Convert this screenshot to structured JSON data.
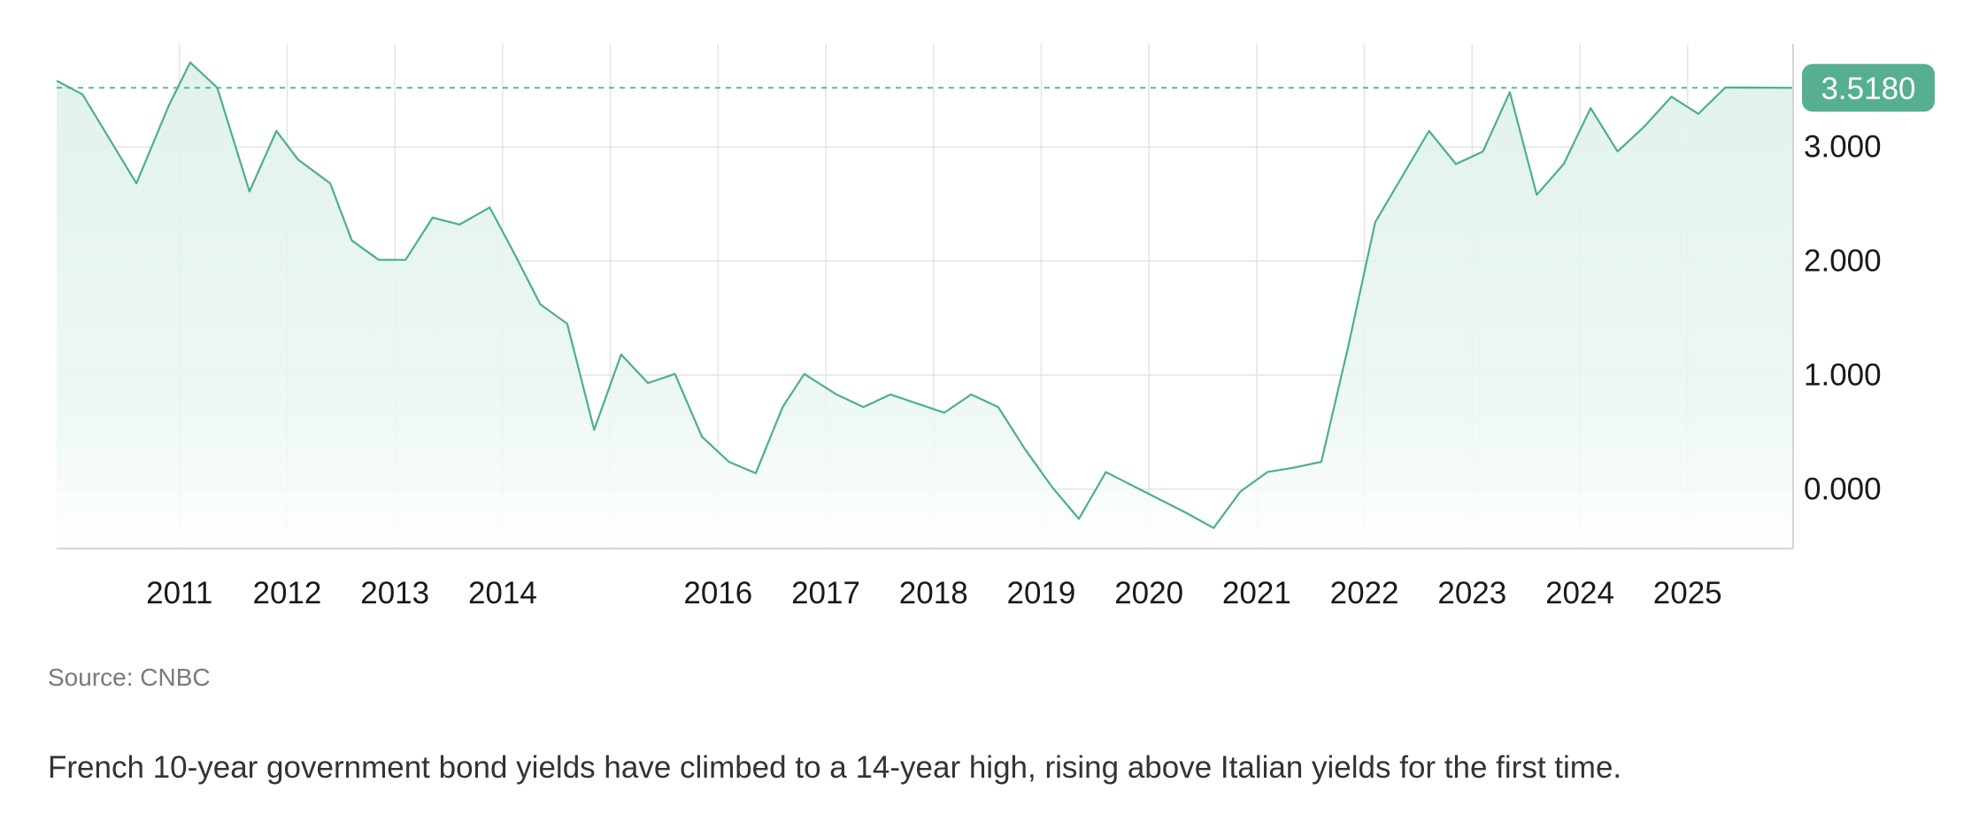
{
  "chart_data": {
    "type": "area",
    "title": "",
    "xlabel": "",
    "ylabel": "",
    "x_tick_labels": [
      "2011",
      "2012",
      "2013",
      "2014",
      "2016",
      "2017",
      "2018",
      "2019",
      "2020",
      "2021",
      "2022",
      "2023",
      "2024",
      "2025"
    ],
    "y_tick_labels": [
      "3.000",
      "2.000",
      "1.000",
      "0.000"
    ],
    "y_ticks": [
      3,
      2,
      1,
      0
    ],
    "ylim": [
      -0.52,
      3.9
    ],
    "xlim": [
      2009.86,
      2025.98
    ],
    "grid": true,
    "legend": "none",
    "current_value": 3.518,
    "current_value_label": "3.5180",
    "series": [
      {
        "values": [
          [
            2009.86,
            3.58
          ],
          [
            2010.1,
            3.46
          ],
          [
            2010.6,
            2.68
          ],
          [
            2010.9,
            3.36
          ],
          [
            2011.1,
            3.74
          ],
          [
            2011.35,
            3.52
          ],
          [
            2011.65,
            2.61
          ],
          [
            2011.9,
            3.14
          ],
          [
            2012.1,
            2.89
          ],
          [
            2012.4,
            2.68
          ],
          [
            2012.6,
            2.18
          ],
          [
            2012.85,
            2.01
          ],
          [
            2013.1,
            2.01
          ],
          [
            2013.35,
            2.38
          ],
          [
            2013.6,
            2.32
          ],
          [
            2013.88,
            2.47
          ],
          [
            2014.1,
            2.08
          ],
          [
            2014.35,
            1.62
          ],
          [
            2014.6,
            1.45
          ],
          [
            2014.85,
            0.52
          ],
          [
            2015.1,
            1.18
          ],
          [
            2015.35,
            0.93
          ],
          [
            2015.6,
            1.01
          ],
          [
            2015.85,
            0.46
          ],
          [
            2016.1,
            0.24
          ],
          [
            2016.35,
            0.14
          ],
          [
            2016.6,
            0.72
          ],
          [
            2016.8,
            1.01
          ],
          [
            2017.1,
            0.83
          ],
          [
            2017.35,
            0.72
          ],
          [
            2017.6,
            0.83
          ],
          [
            2017.85,
            0.75
          ],
          [
            2018.1,
            0.67
          ],
          [
            2018.35,
            0.83
          ],
          [
            2018.6,
            0.72
          ],
          [
            2018.85,
            0.35
          ],
          [
            2019.1,
            0.02
          ],
          [
            2019.35,
            -0.26
          ],
          [
            2019.6,
            0.15
          ],
          [
            2019.85,
            0.03
          ],
          [
            2020.1,
            -0.09
          ],
          [
            2020.35,
            -0.21
          ],
          [
            2020.6,
            -0.34
          ],
          [
            2020.85,
            -0.02
          ],
          [
            2021.1,
            0.15
          ],
          [
            2021.35,
            0.19
          ],
          [
            2021.6,
            0.24
          ],
          [
            2021.85,
            1.25
          ],
          [
            2022.1,
            2.34
          ],
          [
            2022.35,
            2.74
          ],
          [
            2022.6,
            3.14
          ],
          [
            2022.85,
            2.85
          ],
          [
            2023.1,
            2.96
          ],
          [
            2023.35,
            3.48
          ],
          [
            2023.6,
            2.58
          ],
          [
            2023.85,
            2.85
          ],
          [
            2024.1,
            3.34
          ],
          [
            2024.35,
            2.96
          ],
          [
            2024.6,
            3.18
          ],
          [
            2024.85,
            3.44
          ],
          [
            2025.1,
            3.29
          ],
          [
            2025.35,
            3.52
          ],
          [
            2025.6,
            3.52
          ],
          [
            2025.98,
            3.518
          ]
        ]
      }
    ]
  },
  "source_text": "Source: CNBC",
  "caption_text": "French 10-year government bond yields have climbed to a 14-year high, rising above Italian yields for the first time.",
  "colors": {
    "line": "#4caf8e",
    "fill": "#e3f3ed",
    "badge": "#56b08f",
    "grid": "#e4e4e4",
    "axis": "#d5d5d5",
    "tick_text": "#1a1a1a",
    "source_text": "#7a7a7a",
    "caption_text": "#333333"
  }
}
